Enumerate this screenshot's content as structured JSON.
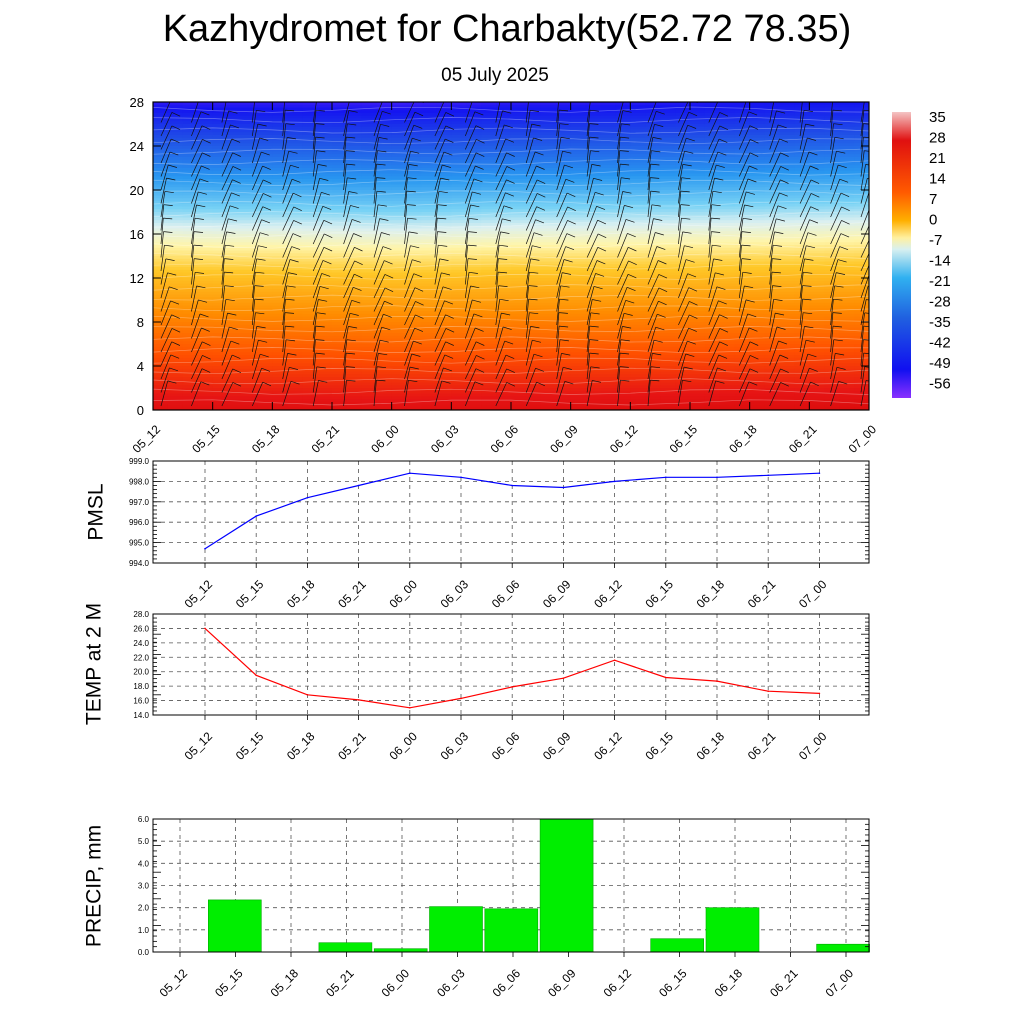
{
  "title": "Kazhydromet for Charbakty(52.72 78.35)",
  "subtitle": "05 July 2025",
  "time_labels": [
    "05_12",
    "05_15",
    "05_18",
    "05_21",
    "06_00",
    "06_03",
    "06_06",
    "06_09",
    "06_12",
    "06_15",
    "06_18",
    "06_21",
    "07_00"
  ],
  "colors": {
    "pmsl_line": "#0000ff",
    "temp_line": "#ff0000",
    "precip_bar": "#00ee00",
    "grid": "#555555"
  },
  "chart_data": [
    {
      "type": "heatmap",
      "name": "temperature-cross-section",
      "x_categories": [
        "05_12",
        "05_15",
        "05_18",
        "05_21",
        "06_00",
        "06_03",
        "06_06",
        "06_09",
        "06_12",
        "06_15",
        "06_18",
        "06_21",
        "07_00"
      ],
      "ylim": [
        0,
        28
      ],
      "y_ticks": [
        0,
        4,
        8,
        12,
        16,
        20,
        24,
        28
      ],
      "freezing_level": [
        12.7,
        12.6,
        12.6,
        12.5,
        12.4,
        12.5,
        12.7,
        12.7,
        12.8,
        12.9,
        13.0,
        13.1,
        13.2
      ],
      "colorbar": {
        "labels": [
          "35",
          "28",
          "21",
          "14",
          "7",
          "0",
          "-7",
          "-14",
          "-21",
          "-28",
          "-35",
          "-42",
          "-49",
          "-56"
        ],
        "range": [
          -60,
          38
        ]
      },
      "overlay": "wind barbs"
    },
    {
      "type": "line",
      "name": "pmsl",
      "ylabel": "PMSL",
      "categories": [
        "05_12",
        "05_15",
        "05_18",
        "05_21",
        "06_00",
        "06_03",
        "06_06",
        "06_09",
        "06_12",
        "06_15",
        "06_18",
        "06_21",
        "07_00"
      ],
      "values": [
        994.7,
        996.3,
        997.2,
        997.8,
        998.4,
        998.2,
        997.8,
        997.7,
        998.0,
        998.2,
        998.2,
        998.3,
        998.4
      ],
      "ylim": [
        994.0,
        999.0
      ],
      "y_ticks": [
        "994.0",
        "995.0",
        "996.0",
        "997.0",
        "998.0",
        "999.0"
      ],
      "grid": true
    },
    {
      "type": "line",
      "name": "temp-2m",
      "ylabel": "TEMP at 2 M",
      "categories": [
        "05_12",
        "05_15",
        "05_18",
        "05_21",
        "06_00",
        "06_03",
        "06_06",
        "06_09",
        "06_12",
        "06_15",
        "06_18",
        "06_21",
        "07_00"
      ],
      "values": [
        26.0,
        19.5,
        16.8,
        16.1,
        15.0,
        16.3,
        17.9,
        19.1,
        21.6,
        19.2,
        18.7,
        17.3,
        17.0
      ],
      "ylim": [
        14.0,
        28.0
      ],
      "y_ticks": [
        "14.0",
        "16.0",
        "18.0",
        "20.0",
        "22.0",
        "24.0",
        "26.0",
        "28.0"
      ],
      "grid": true
    },
    {
      "type": "bar",
      "name": "precip",
      "ylabel": "PRECIP, mm",
      "categories": [
        "05_12",
        "05_15",
        "05_18",
        "05_21",
        "06_00",
        "06_03",
        "06_06",
        "06_09",
        "06_12",
        "06_15",
        "06_18",
        "06_21",
        "07_00"
      ],
      "values": [
        0,
        2.35,
        0,
        0.42,
        0.15,
        2.05,
        1.95,
        6.0,
        0,
        0.6,
        2.0,
        0,
        0.35
      ],
      "ylim": [
        0,
        6.0
      ],
      "y_ticks": [
        "0.0",
        "1.0",
        "2.0",
        "3.0",
        "4.0",
        "5.0",
        "6.0"
      ],
      "grid": true
    }
  ]
}
